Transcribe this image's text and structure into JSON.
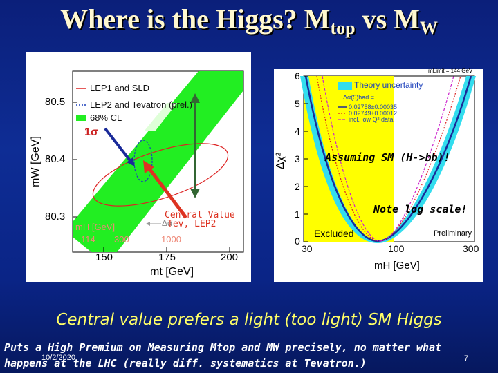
{
  "slide": {
    "title_main": "Where is the Higgs? M",
    "title_sub1": "top",
    "title_mid": " vs M",
    "title_sub2": "W",
    "bottom_text": "Central value prefers a light (too light)  SM Higgs",
    "note_line1": "Puts a High Premium on Measuring Mtop and MW precisely, no matter what",
    "note_line2": "happens at the LHC (really diff. systematics at Tevatron.)",
    "date": "10/2/2020",
    "page_number": "7",
    "colors": {
      "background": "#0b1f7a",
      "title": "#fff8d0",
      "caption": "#ffff66"
    }
  },
  "left_plot": {
    "ylabel": "mW  [GeV]",
    "xlabel": "mt  [GeV]",
    "y_ticks": [
      "80.5",
      "80.4",
      "80.3"
    ],
    "x_ticks": [
      "150",
      "175",
      "200"
    ],
    "legend": [
      "LEP1 and SLD",
      "LEP2 and Tevatron (prel.)",
      "68% CL"
    ],
    "sigma_label": "1σ",
    "mh_label": "mH [GeV]",
    "mh_ticks": [
      "114",
      "300",
      "1000"
    ],
    "dalpha_label": "Δα",
    "central_value_label": "Central  Value",
    "tev_lep2_label": "Tev, LEP2"
  },
  "right_plot": {
    "ylabel": "Δχ²",
    "xlabel": "mH [GeV]",
    "y_ticks": [
      "6",
      "5",
      "4",
      "3",
      "2",
      "1",
      "0"
    ],
    "x_ticks": [
      "30",
      "100",
      "300"
    ],
    "mlimit_label": "mLimit = 144 GeV",
    "legend_title": "Theory uncertainty",
    "legend_alpha": "Δα(5)had =",
    "legend_items": [
      "0.02758±0.00035",
      "0.02749±0.00012",
      "incl. low Q² data"
    ],
    "excluded_label": "Excluded",
    "preliminary_label": "Preliminary",
    "assuming_note": "Assuming SM (H->bb)!",
    "log_note": "Note log scale!"
  }
}
